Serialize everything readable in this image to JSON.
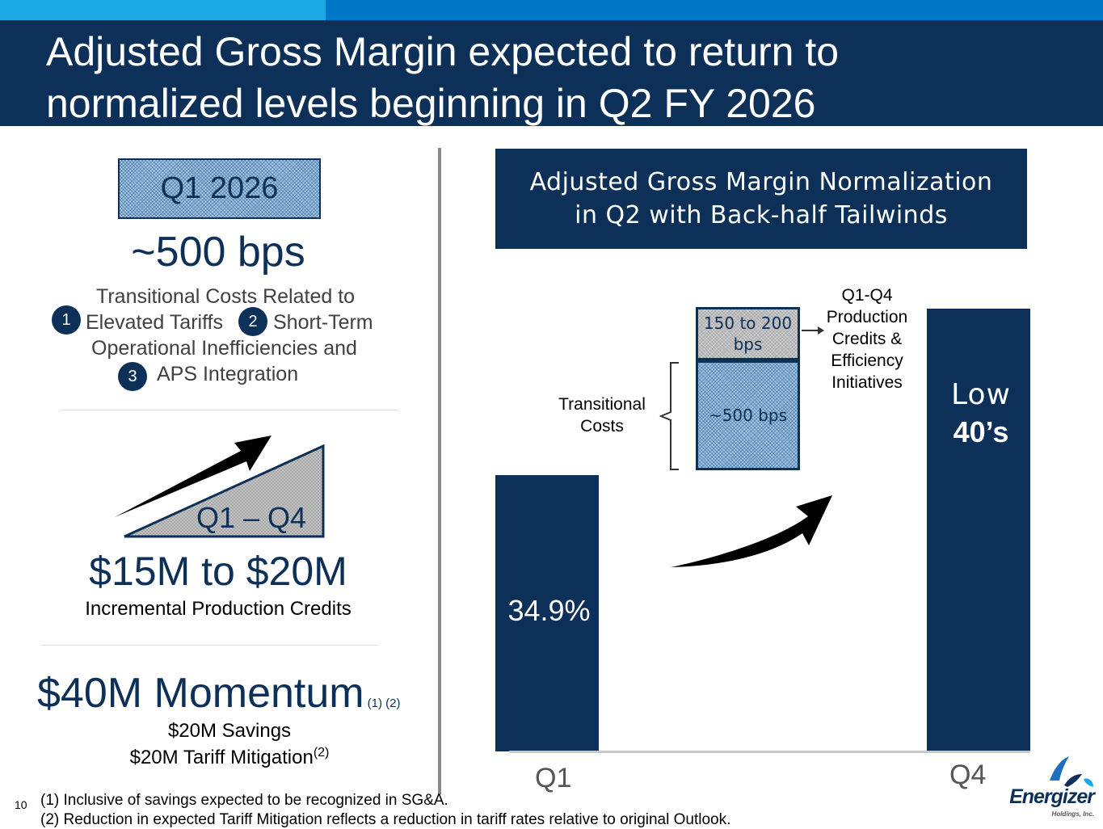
{
  "header": {
    "title_line1": "Adjusted Gross Margin expected to return to",
    "title_line2": "normalized levels beginning in Q2 FY 2026"
  },
  "left": {
    "q1_label": "Q1 2026",
    "impact_value": "~500 bps",
    "transitional": {
      "line1": "Transitional Costs Related to",
      "n1": "1",
      "item1": "Elevated Tariffs",
      "n2": "2",
      "item2": "Short-Term",
      "line3": "Operational Inefficiencies and",
      "n3": "3",
      "item3": "APS Integration"
    },
    "period_label": "Q1 – Q4",
    "credits_value": "$15M to $20M",
    "credits_caption": "Incremental Production Credits",
    "momentum_value": "$40M Momentum",
    "momentum_refs": "(1) (2)",
    "savings_line": "$20M Savings",
    "tariff_line": "$20M Tariff Mitigation",
    "tariff_ref": "(2)"
  },
  "chart_title": {
    "line1": "Adjusted Gross Margin Normalization",
    "line2": "in Q2 with Back-half Tailwinds"
  },
  "chart_data": {
    "type": "bar",
    "title": "Adjusted Gross Margin Normalization in Q2 with Back-half Tailwinds",
    "categories": [
      "Q1",
      "Q4"
    ],
    "series": [
      {
        "name": "Adjusted Gross Margin",
        "values": [
          34.9,
          40
        ],
        "labels": [
          "34.9%",
          "Low 40’s"
        ]
      }
    ],
    "bridge_components": [
      {
        "name": "Transitional Costs",
        "label": "~500 bps",
        "value_bps": 500
      },
      {
        "name": "Q1-Q4 Production Credits & Efficiency Initiatives",
        "label": "150 to 200 bps",
        "value_bps_range": [
          150,
          200
        ]
      }
    ],
    "q1_bar_label": "34.9%",
    "q4_bar_label_top": "Low",
    "q4_bar_label_bottom": "40’s",
    "credits_box_label": "150 to 200 bps",
    "transitional_box_label": "~500 bps",
    "credits_note": "Q1-Q4 Production Credits & Efficiency Initiatives",
    "transitional_note": "Transitional Costs",
    "xlabel": "",
    "ylabel": ""
  },
  "footer": {
    "page_number": "10",
    "footnote1": "(1) Inclusive of savings expected to be recognized  in SG&A.",
    "footnote2": "(2) Reduction in expected Tariff Mitigation reflects a reduction in tariff rates relative to original Outlook."
  },
  "logo": {
    "brand": "Energizer",
    "sub": "Holdings, Inc."
  }
}
